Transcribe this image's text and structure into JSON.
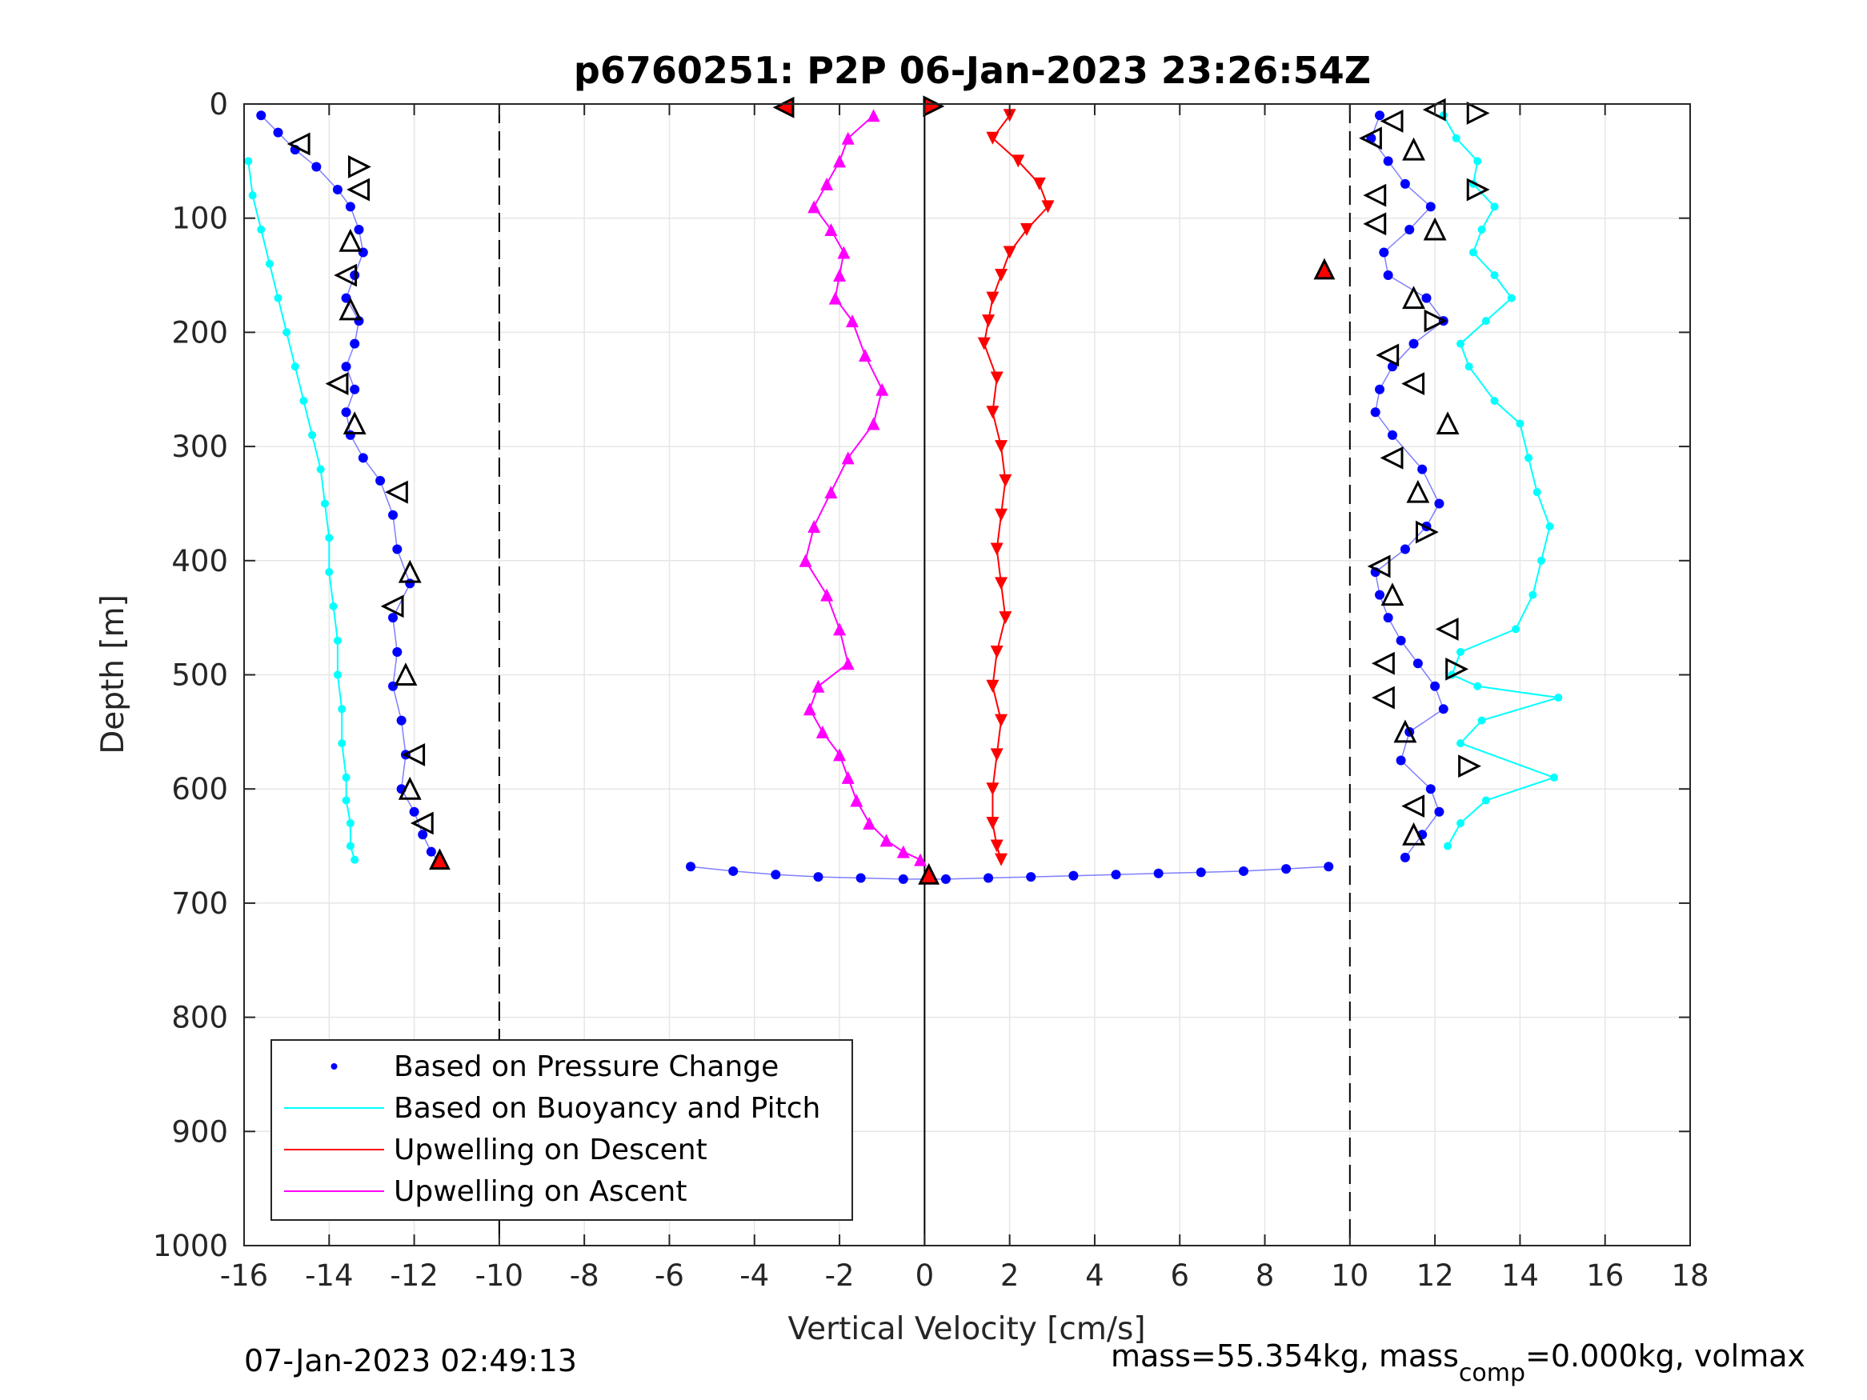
{
  "chart_data": {
    "type": "scatter",
    "title": "p6760251: P2P 06-Jan-2023 23:26:54Z",
    "xlabel": "Vertical Velocity [cm/s]",
    "ylabel": "Depth [m]",
    "xlim": [
      -16,
      18
    ],
    "ylim": [
      0,
      1000
    ],
    "y_reversed": true,
    "grid": true,
    "legend_position": "bottom-left",
    "x_ticks": [
      "-16",
      "-14",
      "-12",
      "-10",
      "-8",
      "-6",
      "-4",
      "-2",
      "0",
      "2",
      "4",
      "6",
      "8",
      "10",
      "12",
      "14",
      "16",
      "18"
    ],
    "y_ticks": [
      "0",
      "100",
      "200",
      "300",
      "400",
      "500",
      "600",
      "700",
      "800",
      "900",
      "1000"
    ],
    "reference_lines": [
      {
        "x": -10,
        "style": "dashed"
      },
      {
        "x": 0,
        "style": "solid"
      },
      {
        "x": 10,
        "style": "dashed"
      }
    ],
    "legend": [
      {
        "label": "Based on Pressure Change",
        "color": "#0000ff",
        "marker": "dot"
      },
      {
        "label": "Based on Buoyancy and Pitch",
        "color": "#00ffff",
        "marker": "line"
      },
      {
        "label": "Upwelling on Descent",
        "color": "#ff0000",
        "marker": "line"
      },
      {
        "label": "Upwelling on Ascent",
        "color": "#ff00ff",
        "marker": "line"
      }
    ],
    "series": [
      {
        "name": "Based on Pressure Change",
        "color": "#0000ff",
        "segments": [
          {
            "x": [
              -15.6,
              -15.2,
              -14.8,
              -14.3,
              -13.8,
              -13.5,
              -13.3,
              -13.2,
              -13.4,
              -13.6,
              -13.3,
              -13.4,
              -13.6,
              -13.4,
              -13.6,
              -13.5,
              -13.2,
              -12.8,
              -12.5,
              -12.4,
              -12.1,
              -12.5,
              -12.4,
              -12.5,
              -12.3,
              -12.2,
              -12.3,
              -12.0,
              -11.8,
              -11.6,
              -11.4
            ],
            "y": [
              10,
              25,
              40,
              55,
              75,
              90,
              110,
              130,
              150,
              170,
              190,
              210,
              230,
              250,
              270,
              290,
              310,
              330,
              360,
              390,
              420,
              450,
              480,
              510,
              540,
              570,
              600,
              620,
              640,
              655,
              665
            ]
          },
          {
            "x": [
              10.7,
              10.5,
              10.9,
              11.3,
              11.9,
              11.4,
              10.8,
              10.9,
              11.8,
              12.2,
              11.5,
              11.0,
              10.7,
              10.6,
              11.0,
              11.7,
              12.1,
              11.8,
              11.3,
              10.6,
              10.7,
              10.9,
              11.2,
              11.6,
              12.0,
              12.2,
              11.4,
              11.2,
              11.9,
              12.1,
              11.7,
              11.3
            ],
            "y": [
              10,
              30,
              50,
              70,
              90,
              110,
              130,
              150,
              170,
              190,
              210,
              230,
              250,
              270,
              290,
              320,
              350,
              370,
              390,
              410,
              430,
              450,
              470,
              490,
              510,
              530,
              550,
              575,
              600,
              620,
              640,
              660
            ]
          },
          {
            "x": [
              -5.5,
              -4.5,
              -3.5,
              -2.5,
              -1.5,
              -0.5,
              0.5,
              1.5,
              2.5,
              3.5,
              4.5,
              5.5,
              6.5,
              7.5,
              8.5,
              9.5
            ],
            "y": [
              668,
              672,
              675,
              677,
              678,
              679,
              679,
              678,
              677,
              676,
              675,
              674,
              673,
              672,
              670,
              668
            ]
          }
        ]
      },
      {
        "name": "Based on Buoyancy and Pitch",
        "color": "#00ffff",
        "segments": [
          {
            "x": [
              -15.9,
              -15.8,
              -15.6,
              -15.4,
              -15.2,
              -15.0,
              -14.8,
              -14.6,
              -14.4,
              -14.2,
              -14.1,
              -14.0,
              -14.0,
              -13.9,
              -13.8,
              -13.8,
              -13.7,
              -13.7,
              -13.6,
              -13.6,
              -13.5,
              -13.5,
              -13.4
            ],
            "y": [
              50,
              80,
              110,
              140,
              170,
              200,
              230,
              260,
              290,
              320,
              350,
              380,
              410,
              440,
              470,
              500,
              530,
              560,
              590,
              610,
              630,
              650,
              662
            ]
          },
          {
            "x": [
              12.2,
              12.5,
              13.0,
              12.9,
              13.4,
              13.1,
              12.9,
              13.4,
              13.8,
              13.2,
              12.6,
              12.8,
              13.4,
              14.0,
              14.2,
              14.4,
              14.7,
              14.5,
              14.3,
              13.9,
              12.6,
              12.4,
              13.0,
              14.9,
              13.1,
              12.6,
              14.8,
              13.2,
              12.6,
              12.3
            ],
            "y": [
              10,
              30,
              50,
              70,
              90,
              110,
              130,
              150,
              170,
              190,
              210,
              230,
              260,
              280,
              310,
              340,
              370,
              400,
              430,
              460,
              480,
              500,
              510,
              520,
              540,
              560,
              590,
              610,
              630,
              650
            ]
          }
        ]
      },
      {
        "name": "Upwelling on Descent",
        "color": "#ff0000",
        "x": [
          2.0,
          1.6,
          2.2,
          2.7,
          2.9,
          2.4,
          2.0,
          1.8,
          1.6,
          1.5,
          1.4,
          1.7,
          1.6,
          1.8,
          1.9,
          1.8,
          1.7,
          1.8,
          1.9,
          1.7,
          1.6,
          1.8,
          1.7,
          1.6,
          1.6,
          1.7,
          1.8
        ],
        "y": [
          10,
          30,
          50,
          70,
          90,
          110,
          130,
          150,
          170,
          190,
          210,
          240,
          270,
          300,
          330,
          360,
          390,
          420,
          450,
          480,
          510,
          540,
          570,
          600,
          630,
          650,
          662
        ]
      },
      {
        "name": "Upwelling on Ascent",
        "color": "#ff00ff",
        "x": [
          -1.2,
          -1.8,
          -2.0,
          -2.3,
          -2.6,
          -2.2,
          -1.9,
          -2.0,
          -2.1,
          -1.7,
          -1.4,
          -1.0,
          -1.2,
          -1.8,
          -2.2,
          -2.6,
          -2.8,
          -2.3,
          -2.0,
          -1.8,
          -2.5,
          -2.7,
          -2.4,
          -2.0,
          -1.8,
          -1.6,
          -1.3,
          -0.9,
          -0.5,
          -0.1
        ],
        "y": [
          10,
          30,
          50,
          70,
          90,
          110,
          130,
          150,
          170,
          190,
          220,
          250,
          280,
          310,
          340,
          370,
          400,
          430,
          460,
          490,
          510,
          530,
          550,
          570,
          590,
          610,
          630,
          645,
          655,
          662
        ]
      }
    ],
    "triangle_markers": [
      {
        "x": -14.7,
        "y": 35,
        "dir": "left"
      },
      {
        "x": -13.3,
        "y": 55,
        "dir": "right"
      },
      {
        "x": -13.3,
        "y": 75,
        "dir": "left"
      },
      {
        "x": -13.5,
        "y": 120,
        "dir": "up"
      },
      {
        "x": -13.6,
        "y": 150,
        "dir": "left"
      },
      {
        "x": -13.5,
        "y": 180,
        "dir": "up"
      },
      {
        "x": -13.8,
        "y": 245,
        "dir": "left"
      },
      {
        "x": -13.4,
        "y": 280,
        "dir": "up"
      },
      {
        "x": -12.4,
        "y": 340,
        "dir": "left"
      },
      {
        "x": -12.1,
        "y": 410,
        "dir": "up"
      },
      {
        "x": -12.5,
        "y": 440,
        "dir": "left"
      },
      {
        "x": -12.2,
        "y": 500,
        "dir": "up"
      },
      {
        "x": -12.0,
        "y": 570,
        "dir": "left"
      },
      {
        "x": -12.1,
        "y": 600,
        "dir": "up"
      },
      {
        "x": -11.8,
        "y": 630,
        "dir": "left"
      },
      {
        "x": 12.0,
        "y": 5,
        "dir": "left"
      },
      {
        "x": 13.0,
        "y": 8,
        "dir": "right"
      },
      {
        "x": 11.0,
        "y": 15,
        "dir": "left"
      },
      {
        "x": 10.5,
        "y": 30,
        "dir": "left"
      },
      {
        "x": 11.5,
        "y": 40,
        "dir": "up"
      },
      {
        "x": 13.0,
        "y": 75,
        "dir": "right"
      },
      {
        "x": 10.6,
        "y": 80,
        "dir": "left"
      },
      {
        "x": 10.6,
        "y": 105,
        "dir": "left"
      },
      {
        "x": 12.0,
        "y": 110,
        "dir": "up"
      },
      {
        "x": 11.5,
        "y": 170,
        "dir": "up"
      },
      {
        "x": 12.0,
        "y": 190,
        "dir": "right"
      },
      {
        "x": 10.9,
        "y": 220,
        "dir": "left"
      },
      {
        "x": 11.5,
        "y": 245,
        "dir": "left"
      },
      {
        "x": 12.3,
        "y": 280,
        "dir": "up"
      },
      {
        "x": 11.0,
        "y": 310,
        "dir": "left"
      },
      {
        "x": 11.6,
        "y": 340,
        "dir": "up"
      },
      {
        "x": 11.8,
        "y": 375,
        "dir": "right"
      },
      {
        "x": 10.7,
        "y": 405,
        "dir": "left"
      },
      {
        "x": 11.0,
        "y": 430,
        "dir": "up"
      },
      {
        "x": 12.3,
        "y": 460,
        "dir": "left"
      },
      {
        "x": 10.8,
        "y": 490,
        "dir": "left"
      },
      {
        "x": 12.5,
        "y": 495,
        "dir": "right"
      },
      {
        "x": 10.8,
        "y": 520,
        "dir": "left"
      },
      {
        "x": 11.3,
        "y": 550,
        "dir": "up"
      },
      {
        "x": 12.8,
        "y": 580,
        "dir": "right"
      },
      {
        "x": 11.5,
        "y": 615,
        "dir": "left"
      },
      {
        "x": 11.5,
        "y": 640,
        "dir": "up"
      }
    ],
    "highlight_markers": [
      {
        "x": -3.3,
        "y": 3,
        "dir": "left"
      },
      {
        "x": 0.2,
        "y": 2,
        "dir": "right"
      },
      {
        "x": 9.4,
        "y": 145,
        "dir": "up"
      },
      {
        "x": -11.4,
        "y": 662,
        "dir": "up"
      },
      {
        "x": 0.1,
        "y": 675,
        "dir": "up"
      }
    ],
    "time_label": "07-Jan-2023 02:49:13",
    "mass_text": {
      "prefix": "mass=55.354kg, mass",
      "subscript": "comp",
      "suffix": "=0.000kg, volmax"
    }
  }
}
